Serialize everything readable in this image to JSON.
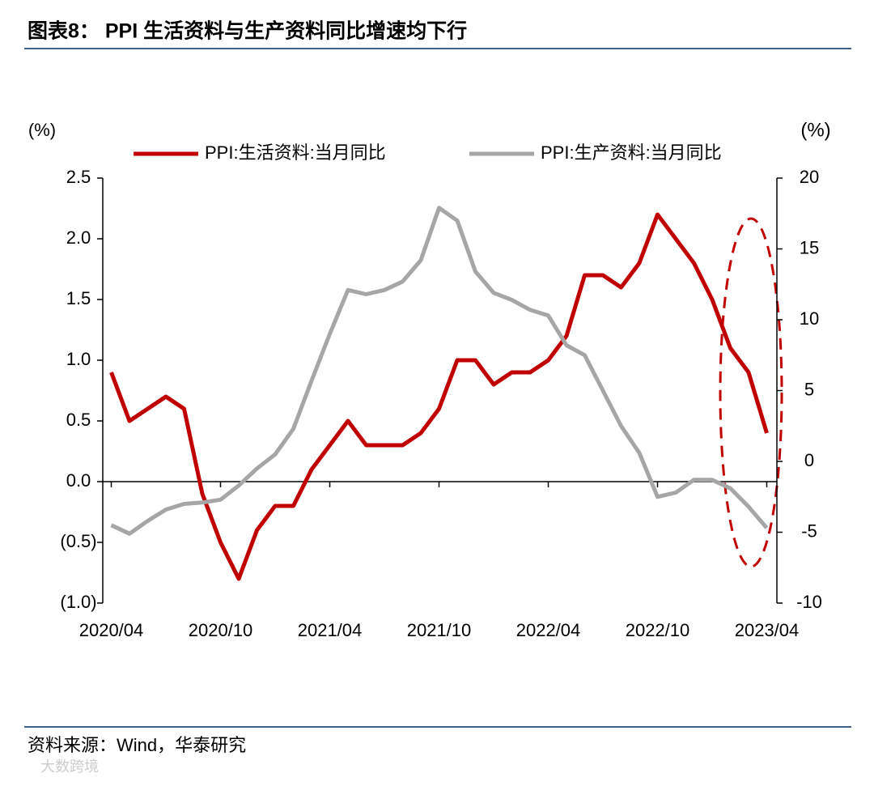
{
  "title": "图表8：  PPI 生活资料与生产资料同比增速均下行",
  "source": "资料来源：Wind，华泰研究",
  "watermark": "大数跨境",
  "chart_data": {
    "type": "line",
    "y_unit": "(%)",
    "y2_unit": "(%)",
    "categories": [
      "2020/04",
      null,
      null,
      null,
      null,
      null,
      "2020/10",
      null,
      null,
      null,
      null,
      null,
      "2021/04",
      null,
      null,
      null,
      null,
      null,
      "2021/10",
      null,
      null,
      null,
      null,
      null,
      "2022/04",
      null,
      null,
      null,
      null,
      null,
      "2022/10",
      null,
      null,
      null,
      null,
      null,
      "2023/04"
    ],
    "series": [
      {
        "name": "PPI:生活资料:当月同比",
        "color": "#c00000",
        "axis": "y",
        "values": [
          0.9,
          0.5,
          0.6,
          0.7,
          0.6,
          -0.1,
          -0.5,
          -0.8,
          -0.4,
          -0.2,
          -0.2,
          0.1,
          0.3,
          0.5,
          0.3,
          0.3,
          0.3,
          0.4,
          0.6,
          1.0,
          1.0,
          0.8,
          0.9,
          0.9,
          1.0,
          1.2,
          1.7,
          1.7,
          1.6,
          1.8,
          2.2,
          2.0,
          1.8,
          1.5,
          1.1,
          0.9,
          0.4
        ]
      },
      {
        "name": "PPI:生产资料:当月同比",
        "color": "#a6a6a6",
        "axis": "y2",
        "values": [
          -4.5,
          -5.1,
          -4.2,
          -3.4,
          -3.0,
          -2.9,
          -2.7,
          -1.7,
          -0.5,
          0.5,
          2.3,
          5.7,
          9.0,
          12.1,
          11.8,
          12.1,
          12.7,
          14.2,
          17.9,
          17.0,
          13.4,
          11.9,
          11.4,
          10.7,
          10.3,
          8.2,
          7.5,
          5.0,
          2.5,
          0.6,
          -2.5,
          -2.2,
          -1.3,
          -1.3,
          -1.9,
          -3.2,
          -4.7
        ]
      }
    ],
    "ylim": [
      -1.0,
      2.5
    ],
    "yticks": [
      {
        "value": -1.0,
        "label": "(1.0)"
      },
      {
        "value": -0.5,
        "label": "(0.5)"
      },
      {
        "value": 0,
        "label": "0.0"
      },
      0.5,
      {
        "value": 1.0,
        "label": "1.0"
      },
      1.5,
      {
        "value": 2.0,
        "label": "2.0"
      },
      2.5
    ],
    "y2lim": [
      -10,
      20
    ],
    "y2ticks": [
      -10,
      -5,
      0,
      5,
      10,
      15,
      20
    ],
    "grid": false,
    "legend": "top"
  }
}
